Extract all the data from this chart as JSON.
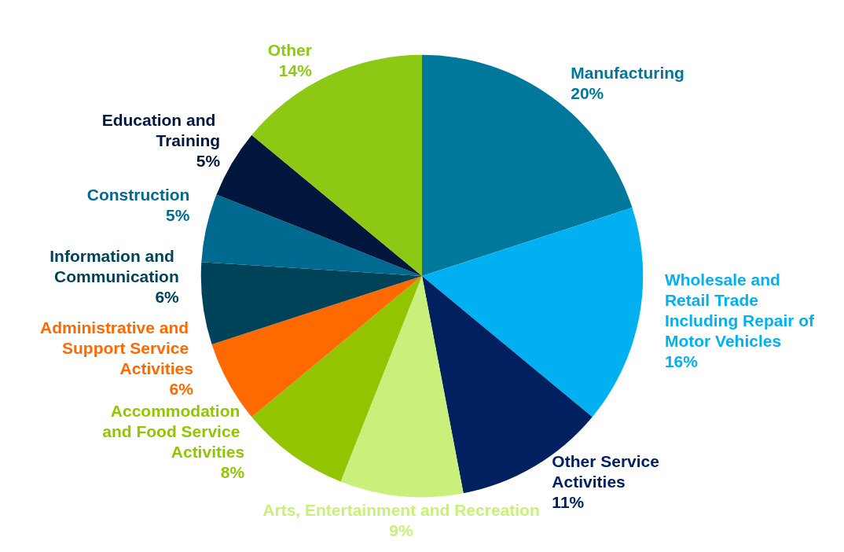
{
  "chart_data": {
    "type": "pie",
    "categories": [
      "Manufacturing",
      "Wholesale and Retail Trade Including Repair of Motor Vehicles",
      "Other Service Activities",
      "Arts, Entertainment and Recreation",
      "Accommodation and Food Service Activities",
      "Administrative and Support Service Activities",
      "Information and Communication",
      "Construction",
      "Education and Training",
      "Other"
    ],
    "values": [
      20,
      16,
      11,
      9,
      8,
      6,
      6,
      5,
      5,
      14
    ],
    "colors": [
      "#00789c",
      "#00b0f0",
      "#002060",
      "#c8f07a",
      "#92c500",
      "#ff6a00",
      "#004358",
      "#006990",
      "#00163d",
      "#8dc814"
    ],
    "value_labels": [
      "20%",
      "16%",
      "11%",
      "9%",
      "8%",
      "6%",
      "6%",
      "5%",
      "5%",
      "14%"
    ],
    "legend": false
  }
}
